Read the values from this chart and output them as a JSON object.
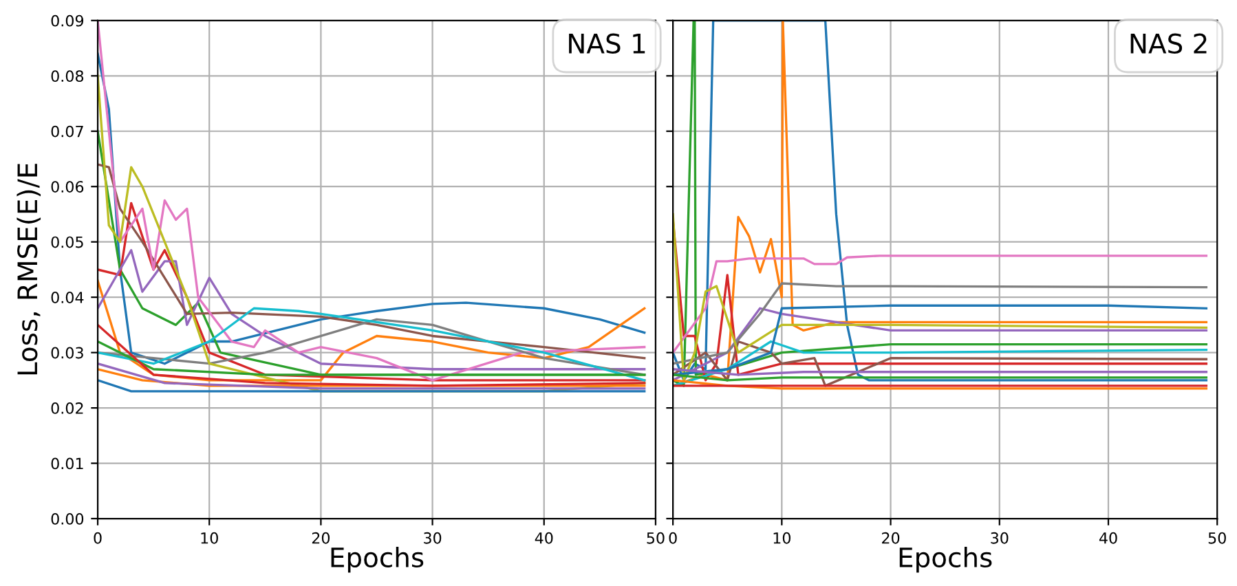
{
  "chart_data": [
    {
      "type": "line",
      "legend_title": "NAS 1",
      "xlabel": "Epochs",
      "ylabel": "Loss, RMSE(E)/E",
      "xlim": [
        0,
        50
      ],
      "xticks": [
        0,
        10,
        20,
        30,
        40,
        50
      ],
      "ylim": [
        0,
        0.09
      ],
      "yticks": [
        {
          "value": 0,
          "label": "0.00"
        },
        {
          "value": 0.01,
          "label": "0.01"
        },
        {
          "value": 0.02,
          "label": "0.02"
        },
        {
          "value": 0.03,
          "label": "0.03"
        },
        {
          "value": 0.04,
          "label": "0.04"
        },
        {
          "value": 0.05,
          "label": "0.05"
        },
        {
          "value": 0.06,
          "label": "0.06"
        },
        {
          "value": 0.07,
          "label": "0.07"
        },
        {
          "value": 0.08,
          "label": "0.08"
        },
        {
          "value": 0.09,
          "label": "0.09"
        }
      ],
      "grid": true,
      "series": [
        {
          "color": "#1f77b4",
          "x": [
            0,
            1,
            2,
            3,
            6,
            10,
            12,
            20,
            25,
            30,
            33,
            40,
            45,
            49
          ],
          "values": [
            0.084,
            0.074,
            0.045,
            0.03,
            0.028,
            0.032,
            0.032,
            0.036,
            0.0375,
            0.0388,
            0.039,
            0.038,
            0.036,
            0.0336
          ]
        },
        {
          "color": "#ff7f0e",
          "x": [
            0,
            2,
            5,
            10,
            20,
            22,
            25,
            30,
            35,
            40,
            44,
            49
          ],
          "values": [
            0.043,
            0.03,
            0.026,
            0.025,
            0.025,
            0.03,
            0.033,
            0.032,
            0.03,
            0.029,
            0.031,
            0.038
          ]
        },
        {
          "color": "#2ca02c",
          "x": [
            0,
            2,
            4,
            7,
            9,
            11,
            20,
            30,
            49
          ],
          "values": [
            0.07,
            0.045,
            0.038,
            0.035,
            0.039,
            0.03,
            0.026,
            0.026,
            0.026
          ]
        },
        {
          "color": "#d62728",
          "x": [
            0,
            2,
            3,
            5,
            6,
            8,
            10,
            15,
            30,
            49
          ],
          "values": [
            0.045,
            0.044,
            0.057,
            0.045,
            0.0485,
            0.04,
            0.03,
            0.026,
            0.025,
            0.025
          ]
        },
        {
          "color": "#9467bd",
          "x": [
            0,
            3,
            4,
            6,
            7,
            8,
            10,
            12,
            15,
            20,
            30,
            49
          ],
          "values": [
            0.038,
            0.0485,
            0.041,
            0.0465,
            0.0465,
            0.035,
            0.0435,
            0.037,
            0.033,
            0.028,
            0.027,
            0.027
          ]
        },
        {
          "color": "#8c564b",
          "x": [
            0,
            1,
            2,
            4,
            8,
            12,
            20,
            25,
            30,
            40,
            49
          ],
          "values": [
            0.064,
            0.0635,
            0.056,
            0.05,
            0.037,
            0.0372,
            0.0365,
            0.035,
            0.033,
            0.031,
            0.029
          ]
        },
        {
          "color": "#e377c2",
          "x": [
            0,
            2,
            4,
            5,
            6,
            7,
            8,
            9,
            12,
            14,
            15,
            18,
            20,
            25,
            30,
            38,
            49
          ],
          "values": [
            0.09,
            0.05,
            0.056,
            0.045,
            0.0575,
            0.054,
            0.056,
            0.04,
            0.032,
            0.031,
            0.034,
            0.03,
            0.031,
            0.029,
            0.025,
            0.03,
            0.031
          ]
        },
        {
          "color": "#7f7f7f",
          "x": [
            0,
            10,
            15,
            25,
            30,
            40,
            49
          ],
          "values": [
            0.03,
            0.028,
            0.03,
            0.036,
            0.035,
            0.029,
            0.026
          ]
        },
        {
          "color": "#bcbd22",
          "x": [
            0,
            1,
            2,
            3,
            4,
            6,
            8,
            10,
            20,
            40,
            49
          ],
          "values": [
            0.08,
            0.053,
            0.05,
            0.0635,
            0.06,
            0.05,
            0.04,
            0.028,
            0.023,
            0.023,
            0.0245
          ]
        },
        {
          "color": "#17becf",
          "x": [
            0,
            5,
            10,
            14,
            18,
            20,
            30,
            40,
            49
          ],
          "values": [
            0.03,
            0.028,
            0.032,
            0.038,
            0.0375,
            0.037,
            0.034,
            0.03,
            0.025
          ]
        },
        {
          "color": "#1f77b4",
          "x": [
            0,
            3,
            10,
            30,
            49
          ],
          "values": [
            0.025,
            0.023,
            0.023,
            0.023,
            0.023
          ]
        },
        {
          "color": "#ff7f0e",
          "x": [
            0,
            4,
            10,
            30,
            49
          ],
          "values": [
            0.027,
            0.025,
            0.024,
            0.024,
            0.024
          ]
        },
        {
          "color": "#2ca02c",
          "x": [
            0,
            5,
            15,
            30,
            49
          ],
          "values": [
            0.032,
            0.027,
            0.026,
            0.026,
            0.026
          ]
        },
        {
          "color": "#d62728",
          "x": [
            0,
            5,
            15,
            30,
            49
          ],
          "values": [
            0.035,
            0.026,
            0.0245,
            0.024,
            0.0245
          ]
        },
        {
          "color": "#9467bd",
          "x": [
            0,
            6,
            20,
            49
          ],
          "values": [
            0.028,
            0.0245,
            0.0235,
            0.0235
          ]
        }
      ]
    },
    {
      "type": "line",
      "legend_title": "NAS 2",
      "xlabel": "Epochs",
      "xlim": [
        0,
        50
      ],
      "xticks": [
        0,
        10,
        20,
        30,
        40,
        50
      ],
      "ylim": [
        0,
        0.09
      ],
      "yticks": [
        {
          "value": 0,
          "label": "0.00"
        },
        {
          "value": 0.01,
          "label": "0.01"
        },
        {
          "value": 0.02,
          "label": "0.02"
        },
        {
          "value": 0.03,
          "label": "0.03"
        },
        {
          "value": 0.04,
          "label": "0.04"
        },
        {
          "value": 0.05,
          "label": "0.05"
        },
        {
          "value": 0.06,
          "label": "0.06"
        },
        {
          "value": 0.07,
          "label": "0.07"
        },
        {
          "value": 0.08,
          "label": "0.08"
        },
        {
          "value": 0.09,
          "label": "0.09"
        }
      ],
      "tick_labels": "x",
      "grid": true,
      "series": [
        {
          "color": "#1f77b4",
          "x": [
            0,
            1,
            2,
            3,
            3.7,
            14,
            15,
            16,
            17,
            18,
            30,
            49
          ],
          "values": [
            0.03,
            0.025,
            0.028,
            0.027,
            0.09,
            0.09,
            0.055,
            0.035,
            0.026,
            0.025,
            0.025,
            0.025
          ]
        },
        {
          "color": "#ff7f0e",
          "x": [
            0,
            3,
            5,
            6,
            7,
            8,
            9,
            10,
            10.1,
            11,
            12,
            15,
            20,
            49
          ],
          "values": [
            0.024,
            0.026,
            0.025,
            0.0545,
            0.051,
            0.0445,
            0.0505,
            0.04,
            0.09,
            0.035,
            0.034,
            0.0355,
            0.0355,
            0.0355
          ]
        },
        {
          "color": "#2ca02c",
          "x": [
            0,
            1,
            1.9,
            2,
            2.1,
            5,
            10,
            20,
            49
          ],
          "values": [
            0.025,
            0.024,
            0.09,
            0.09,
            0.026,
            0.027,
            0.03,
            0.0315,
            0.0315
          ]
        },
        {
          "color": "#d62728",
          "x": [
            0,
            1,
            2,
            3,
            4,
            5,
            6,
            10,
            20,
            49
          ],
          "values": [
            0.054,
            0.033,
            0.033,
            0.025,
            0.028,
            0.044,
            0.026,
            0.028,
            0.028,
            0.028
          ]
        },
        {
          "color": "#9467bd",
          "x": [
            0,
            5,
            8,
            10,
            20,
            49
          ],
          "values": [
            0.025,
            0.03,
            0.038,
            0.037,
            0.034,
            0.034
          ]
        },
        {
          "color": "#8c564b",
          "x": [
            0,
            3,
            5,
            6,
            9,
            10,
            13,
            14,
            20,
            49
          ],
          "values": [
            0.026,
            0.03,
            0.025,
            0.032,
            0.03,
            0.028,
            0.029,
            0.024,
            0.029,
            0.0288
          ]
        },
        {
          "color": "#e377c2",
          "x": [
            0,
            3,
            4,
            5,
            7,
            12,
            13,
            15,
            16,
            19,
            49
          ],
          "values": [
            0.03,
            0.038,
            0.0465,
            0.0465,
            0.047,
            0.047,
            0.046,
            0.046,
            0.0472,
            0.0475,
            0.0475
          ]
        },
        {
          "color": "#7f7f7f",
          "x": [
            0,
            5,
            8,
            10,
            15,
            20,
            49
          ],
          "values": [
            0.028,
            0.03,
            0.037,
            0.0425,
            0.042,
            0.042,
            0.0418
          ]
        },
        {
          "color": "#bcbd22",
          "x": [
            0,
            1,
            2,
            3,
            4,
            6,
            10,
            20,
            49
          ],
          "values": [
            0.055,
            0.025,
            0.03,
            0.041,
            0.042,
            0.03,
            0.035,
            0.035,
            0.0345
          ]
        },
        {
          "color": "#17becf",
          "x": [
            0,
            5,
            9,
            12,
            20,
            49
          ],
          "values": [
            0.024,
            0.027,
            0.032,
            0.03,
            0.03,
            0.0305
          ]
        },
        {
          "color": "#1f77b4",
          "x": [
            0,
            5,
            9,
            10,
            20,
            40,
            49
          ],
          "values": [
            0.026,
            0.027,
            0.03,
            0.038,
            0.0385,
            0.0385,
            0.038
          ]
        },
        {
          "color": "#ff7f0e",
          "x": [
            0,
            5,
            10,
            30,
            49
          ],
          "values": [
            0.025,
            0.024,
            0.0235,
            0.0235,
            0.0235
          ]
        },
        {
          "color": "#2ca02c",
          "x": [
            0,
            5,
            10,
            30,
            49
          ],
          "values": [
            0.026,
            0.025,
            0.0255,
            0.0255,
            0.0255
          ]
        },
        {
          "color": "#d62728",
          "x": [
            0,
            5,
            10,
            30,
            49
          ],
          "values": [
            0.024,
            0.024,
            0.024,
            0.024,
            0.024
          ]
        },
        {
          "color": "#9467bd",
          "x": [
            0,
            6,
            12,
            49
          ],
          "values": [
            0.027,
            0.026,
            0.0265,
            0.0265
          ]
        }
      ]
    }
  ]
}
